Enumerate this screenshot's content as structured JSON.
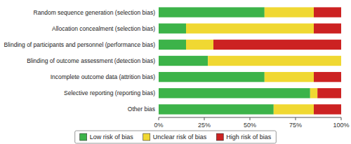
{
  "chart_data": {
    "type": "bar",
    "orientation": "horizontal",
    "stacked": true,
    "categories": [
      "Random sequence generation (selection bias)",
      "Allocation concealment (selection bias)",
      "Blinding of participants and personnel (performance bias)",
      "Blinding of outcome assessment (detection bias)",
      "Incomplete outcome data (attrition bias)",
      "Selective reporting (reporting bias)",
      "Other bias"
    ],
    "series": [
      {
        "name": "Low risk of bias",
        "color": "#3cb349",
        "values": [
          58,
          15,
          15,
          27,
          58,
          83,
          63
        ]
      },
      {
        "name": "Unclear risk of bias",
        "color": "#f0d832",
        "values": [
          27,
          70,
          15,
          73,
          27,
          4,
          22
        ]
      },
      {
        "name": "High risk of bias",
        "color": "#cc2222",
        "values": [
          15,
          15,
          70,
          0,
          15,
          13,
          15
        ]
      }
    ],
    "xlim": [
      0,
      100
    ],
    "xticks": [
      {
        "value": 0,
        "label": "0%"
      },
      {
        "value": 25,
        "label": "25%"
      },
      {
        "value": 50,
        "label": "50%"
      },
      {
        "value": 75,
        "label": "75%"
      },
      {
        "value": 100,
        "label": "100%"
      }
    ],
    "grid": false,
    "legend": "bottom"
  }
}
